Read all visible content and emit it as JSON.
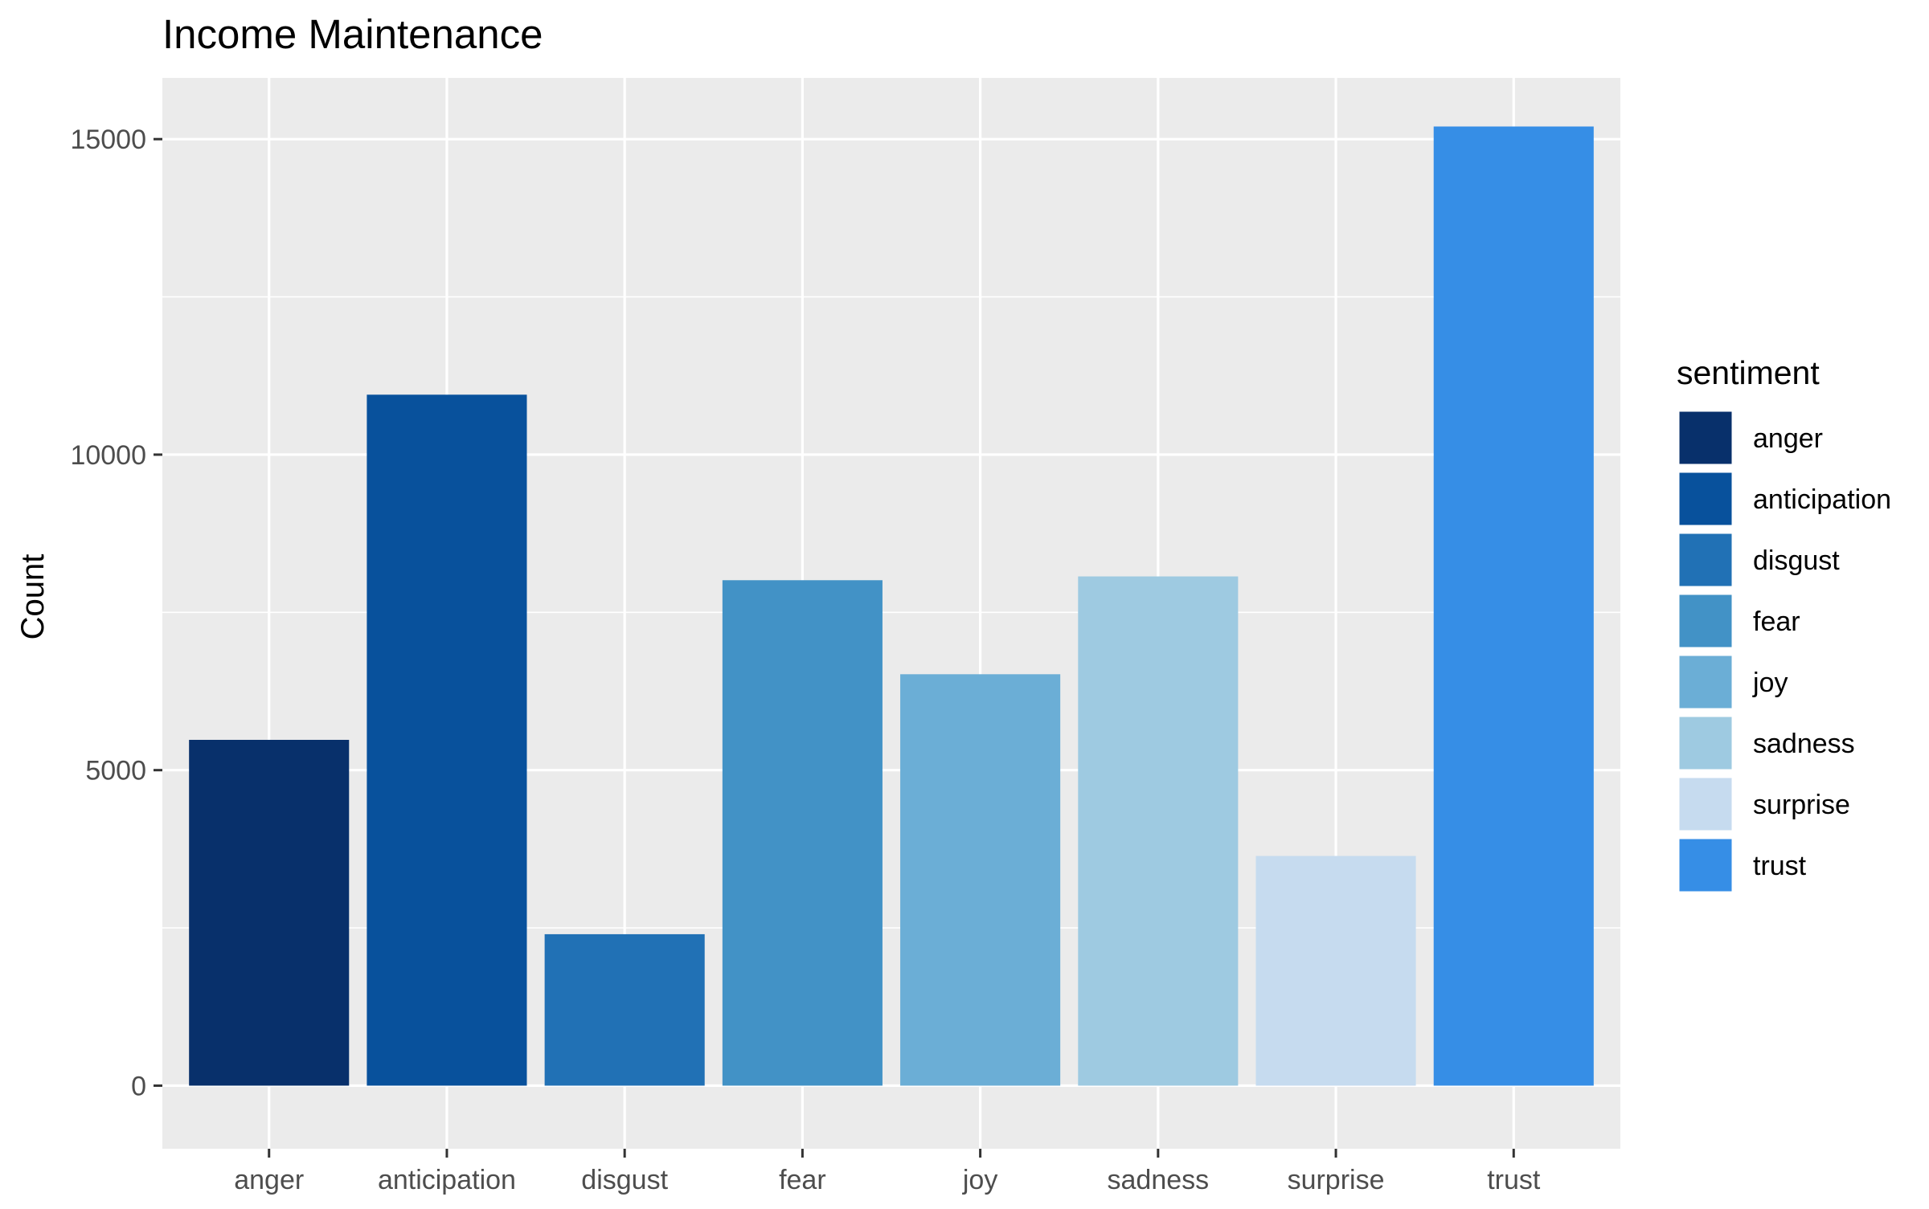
{
  "chart_data": {
    "type": "bar",
    "title": "Income Maintenance",
    "xlabel": "",
    "ylabel": "Count",
    "categories": [
      "anger",
      "anticipation",
      "disgust",
      "fear",
      "joy",
      "sadness",
      "surprise",
      "trust"
    ],
    "values": [
      5480,
      10950,
      2400,
      8010,
      6520,
      8070,
      3640,
      15200
    ],
    "colors": [
      "#08306b",
      "#08519c",
      "#2171b5",
      "#4292c6",
      "#6baed6",
      "#9ecae1",
      "#c6dbef",
      "#368ee6"
    ],
    "ylim": [
      -1000,
      15970
    ],
    "yticks": [
      0,
      5000,
      10000,
      15000
    ],
    "ytick_labels": [
      "0",
      "5000",
      "10000",
      "15000"
    ],
    "y_minor_grid": [
      2500,
      7500,
      12500
    ],
    "grid": true,
    "background": "#ebebeb",
    "legend": {
      "title": "sentiment",
      "position": "right",
      "items": [
        "anger",
        "anticipation",
        "disgust",
        "fear",
        "joy",
        "sadness",
        "surprise",
        "trust"
      ]
    }
  }
}
